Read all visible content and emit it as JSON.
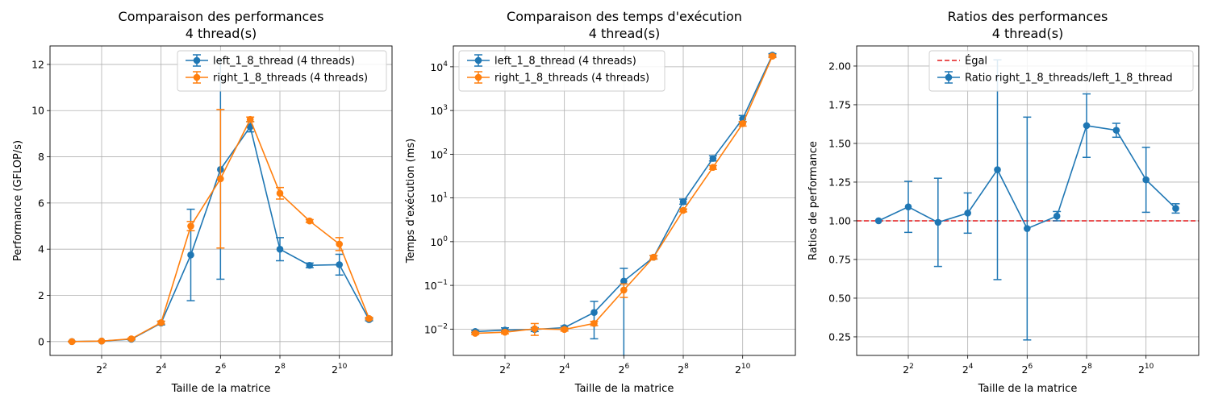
{
  "chart_data": [
    {
      "type": "line",
      "title_line1": "Comparaison des performances",
      "title_line2": "4 thread(s)",
      "xlabel": "Taille de la matrice",
      "ylabel": "Performance (GFLOP/s)",
      "xscale": "log2",
      "xlim": [
        1.2,
        3500
      ],
      "ylim": [
        -0.6,
        12.8
      ],
      "grid": true,
      "legend_position": "top-right",
      "x_ticks": [
        {
          "base": "2",
          "exp": "2",
          "value": 4
        },
        {
          "base": "2",
          "exp": "4",
          "value": 16
        },
        {
          "base": "2",
          "exp": "6",
          "value": 64
        },
        {
          "base": "2",
          "exp": "8",
          "value": 256
        },
        {
          "base": "2",
          "exp": "10",
          "value": 1024
        }
      ],
      "y_ticks": [
        {
          "label": "0",
          "value": 0
        },
        {
          "label": "2",
          "value": 2
        },
        {
          "label": "4",
          "value": 4
        },
        {
          "label": "6",
          "value": 6
        },
        {
          "label": "8",
          "value": 8
        },
        {
          "label": "10",
          "value": 10
        },
        {
          "label": "12",
          "value": 12
        }
      ],
      "x": [
        2,
        4,
        8,
        16,
        32,
        64,
        128,
        256,
        512,
        1024,
        2048
      ],
      "series": [
        {
          "name": "left_1_8_thread (4 threads)",
          "color": "#1f77b4",
          "values": [
            0.0,
            0.02,
            0.1,
            0.8,
            3.75,
            7.45,
            9.3,
            4.0,
            3.3,
            3.33,
            0.95
          ],
          "errors": [
            0.01,
            0.01,
            0.03,
            0.08,
            1.98,
            4.75,
            0.22,
            0.5,
            0.1,
            0.45,
            0.05
          ]
        },
        {
          "name": "right_1_8_threads (4 threads)",
          "color": "#ff7f0e",
          "values": [
            0.0,
            0.02,
            0.12,
            0.82,
            5.0,
            7.05,
            9.62,
            6.42,
            5.22,
            4.22,
            1.0
          ],
          "errors": [
            0.01,
            0.01,
            0.03,
            0.06,
            0.2,
            3.0,
            0.1,
            0.25,
            0.06,
            0.28,
            0.05
          ]
        }
      ]
    },
    {
      "type": "line",
      "title_line1": "Comparaison des temps d'exécution",
      "title_line2": "4 thread(s)",
      "xlabel": "Taille de la matrice",
      "ylabel": "Temps d'exécution (ms)",
      "xscale": "log2",
      "yscale": "log10",
      "xlim": [
        1.2,
        3500
      ],
      "ylim": [
        0.0025,
        30000
      ],
      "grid": true,
      "legend_position": "top-left",
      "x_ticks": [
        {
          "base": "2",
          "exp": "2",
          "value": 4
        },
        {
          "base": "2",
          "exp": "4",
          "value": 16
        },
        {
          "base": "2",
          "exp": "6",
          "value": 64
        },
        {
          "base": "2",
          "exp": "8",
          "value": 256
        },
        {
          "base": "2",
          "exp": "10",
          "value": 1024
        }
      ],
      "y_ticks": [
        {
          "base": "10",
          "exp": "−2",
          "value": 0.01
        },
        {
          "base": "10",
          "exp": "−1",
          "value": 0.1
        },
        {
          "base": "10",
          "exp": "0",
          "value": 1
        },
        {
          "base": "10",
          "exp": "1",
          "value": 10
        },
        {
          "base": "10",
          "exp": "2",
          "value": 100
        },
        {
          "base": "10",
          "exp": "3",
          "value": 1000
        },
        {
          "base": "10",
          "exp": "4",
          "value": 10000
        }
      ],
      "x": [
        2,
        4,
        8,
        16,
        32,
        64,
        128,
        256,
        512,
        1024,
        2048
      ],
      "series": [
        {
          "name": "left_1_8_thread (4 threads)",
          "color": "#1f77b4",
          "values": [
            0.0088,
            0.0095,
            0.0098,
            0.0108,
            0.024,
            0.125,
            0.44,
            8.2,
            80,
            650,
            18500
          ],
          "err_low": [
            0.0005,
            0.0008,
            0.001,
            0.001,
            0.018,
            0.123,
            0.04,
            1.0,
            10,
            100,
            1500
          ],
          "err_high": [
            0.0005,
            0.0012,
            0.001,
            0.001,
            0.019,
            0.12,
            0.04,
            1.2,
            12,
            120,
            1500
          ]
        },
        {
          "name": "right_1_8_threads (4 threads)",
          "color": "#ff7f0e",
          "values": [
            0.008,
            0.0085,
            0.0102,
            0.0098,
            0.0135,
            0.078,
            0.44,
            5.2,
            50,
            500,
            17500
          ],
          "err_low": [
            0.0005,
            0.0007,
            0.003,
            0.0008,
            0.0015,
            0.025,
            0.04,
            0.4,
            5,
            60,
            1200
          ],
          "err_high": [
            0.0005,
            0.0007,
            0.0032,
            0.0008,
            0.0015,
            0.03,
            0.04,
            0.4,
            5,
            60,
            1200
          ]
        }
      ]
    },
    {
      "type": "line",
      "title_line1": "Ratios des performances",
      "title_line2": "4 thread(s)",
      "xlabel": "Taille de la matrice",
      "ylabel": "Ratios de performance",
      "xscale": "log2",
      "xlim": [
        1.2,
        3500
      ],
      "ylim": [
        0.13,
        2.13
      ],
      "grid": true,
      "legend_position": "top-right",
      "x_ticks": [
        {
          "base": "2",
          "exp": "2",
          "value": 4
        },
        {
          "base": "2",
          "exp": "4",
          "value": 16
        },
        {
          "base": "2",
          "exp": "6",
          "value": 64
        },
        {
          "base": "2",
          "exp": "8",
          "value": 256
        },
        {
          "base": "2",
          "exp": "10",
          "value": 1024
        }
      ],
      "y_ticks": [
        {
          "label": "0.25",
          "value": 0.25
        },
        {
          "label": "0.50",
          "value": 0.5
        },
        {
          "label": "0.75",
          "value": 0.75
        },
        {
          "label": "1.00",
          "value": 1.0
        },
        {
          "label": "1.25",
          "value": 1.25
        },
        {
          "label": "1.50",
          "value": 1.5
        },
        {
          "label": "1.75",
          "value": 1.75
        },
        {
          "label": "2.00",
          "value": 2.0
        }
      ],
      "reference_line": {
        "name": "Égal",
        "value": 1.0,
        "color": "#e41a1c"
      },
      "x": [
        2,
        4,
        8,
        16,
        32,
        64,
        128,
        256,
        512,
        1024,
        2048
      ],
      "series": [
        {
          "name": "Ratio right_1_8_threads/left_1_8_thread",
          "color": "#1f77b4",
          "values": [
            1.0,
            1.09,
            0.99,
            1.05,
            1.33,
            0.95,
            1.03,
            1.615,
            1.585,
            1.265,
            1.08
          ],
          "errors": [
            0.0,
            0.165,
            0.285,
            0.13,
            0.71,
            0.72,
            0.03,
            0.205,
            0.045,
            0.21,
            0.03
          ]
        }
      ]
    }
  ]
}
